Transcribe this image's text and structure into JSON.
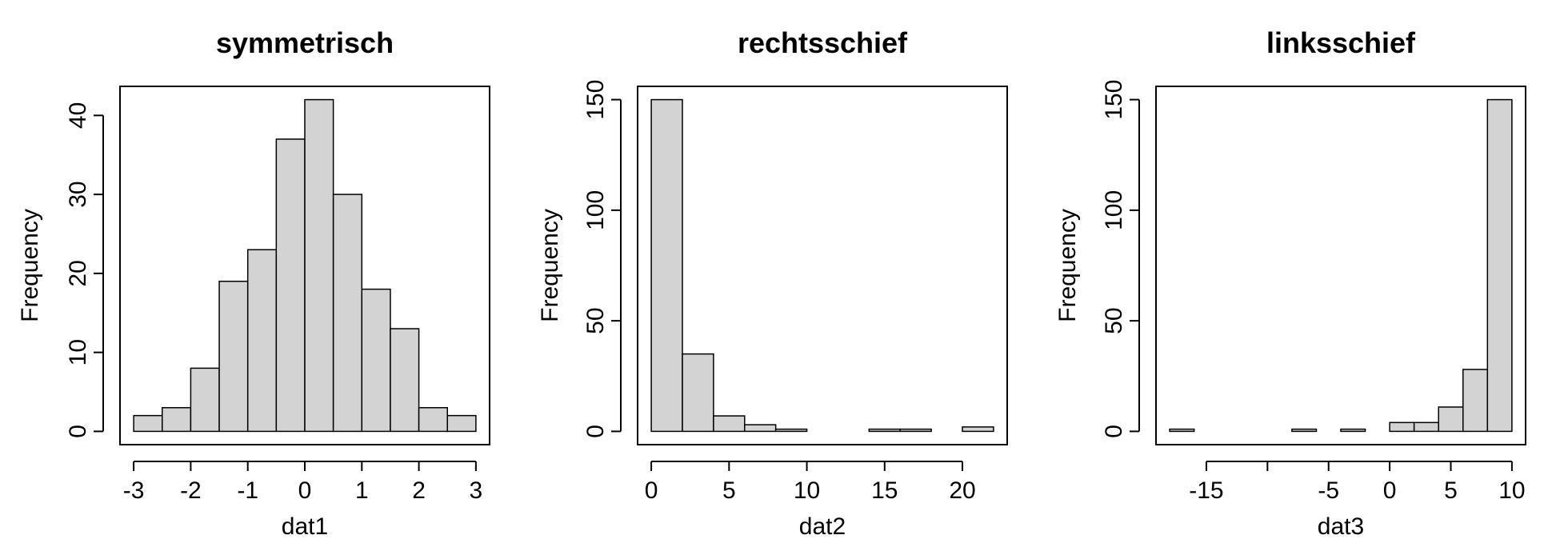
{
  "chart_data": [
    {
      "type": "bar",
      "title": "symmetrisch",
      "xlabel": "dat1",
      "ylabel": "Frequency",
      "bin_edges": [
        -3,
        -2.5,
        -2,
        -1.5,
        -1,
        -0.5,
        0,
        0.5,
        1,
        1.5,
        2,
        2.5,
        3
      ],
      "values": [
        2,
        3,
        8,
        19,
        23,
        37,
        42,
        30,
        18,
        13,
        3,
        2
      ],
      "xticks": [
        -3,
        -2,
        -1,
        0,
        1,
        2,
        3
      ],
      "xtick_labels": [
        "-3",
        "-2",
        "-1",
        "0",
        "1",
        "2",
        "3"
      ],
      "yticks": [
        0,
        10,
        20,
        30,
        40
      ],
      "ytick_labels": [
        "0",
        "10",
        "20",
        "30",
        "40"
      ],
      "xlim": [
        -3.24,
        3.24
      ],
      "ylim": [
        -1.68,
        43.68
      ],
      "bar_color": "#d3d3d3"
    },
    {
      "type": "bar",
      "title": "rechtsschief",
      "xlabel": "dat2",
      "ylabel": "Frequency",
      "bin_edges": [
        0,
        2,
        4,
        6,
        8,
        10,
        12,
        14,
        16,
        18,
        20,
        22
      ],
      "values": [
        150,
        35,
        7,
        3,
        1,
        0,
        0,
        1,
        1,
        0,
        2
      ],
      "xticks": [
        0,
        5,
        10,
        15,
        20
      ],
      "xtick_labels": [
        "0",
        "5",
        "10",
        "15",
        "20"
      ],
      "yticks": [
        0,
        50,
        100,
        150
      ],
      "ytick_labels": [
        "0",
        "50",
        "100",
        "150"
      ],
      "xlim": [
        -0.88,
        22.88
      ],
      "ylim": [
        -6,
        156
      ],
      "bar_color": "#d3d3d3"
    },
    {
      "type": "bar",
      "title": "linksschief",
      "xlabel": "dat3",
      "ylabel": "Frequency",
      "bin_edges": [
        -18,
        -16,
        -14,
        -12,
        -10,
        -8,
        -6,
        -4,
        -2,
        0,
        2,
        4,
        6,
        8,
        10
      ],
      "values": [
        1,
        0,
        0,
        0,
        0,
        1,
        0,
        1,
        0,
        4,
        4,
        11,
        28,
        150
      ],
      "xticks": [
        -15,
        -10,
        -5,
        0,
        5,
        10
      ],
      "xtick_labels": [
        "-15",
        "",
        "-5",
        "0",
        "5",
        "10"
      ],
      "yticks": [
        0,
        50,
        100,
        150
      ],
      "ytick_labels": [
        "0",
        "50",
        "100",
        "150"
      ],
      "xlim": [
        -19.12,
        11.12
      ],
      "ylim": [
        -6,
        156
      ],
      "bar_color": "#d3d3d3"
    }
  ]
}
